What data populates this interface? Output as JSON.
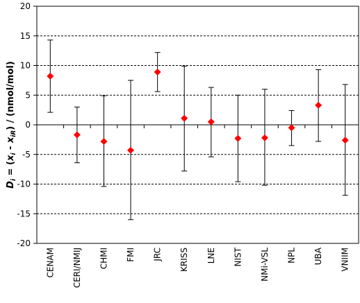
{
  "chart_data": {
    "type": "scatter",
    "ylabel": "Di = (xi - xiR) / (nmol/mol)",
    "ylabel_parts": {
      "d": "D",
      "d_sub": "i",
      "eq": " = (",
      "x1": "x",
      "x1_sub": "i",
      "minus": " - ",
      "x2": "x",
      "x2_sub": "iR",
      "tail": ") / (nmol/mol)"
    },
    "ylim": [
      -20,
      20
    ],
    "yticks": [
      -20,
      -15,
      -10,
      -5,
      0,
      5,
      10,
      15,
      20
    ],
    "grid": true,
    "legend": "none",
    "marker_color": "#ff0000",
    "categories": [
      "CENAM",
      "CERI/NMIJ",
      "CHMI",
      "FMI",
      "JRC",
      "KRISS",
      "LNE",
      "NIST",
      "NMi-VSL",
      "NPL",
      "UBA",
      "VNIIM"
    ],
    "values": [
      8.2,
      -1.7,
      -2.8,
      -4.3,
      8.9,
      1.1,
      0.5,
      -2.3,
      -2.2,
      -0.5,
      3.3,
      -2.6
    ],
    "lower": [
      2.1,
      -6.4,
      -10.4,
      -16.0,
      5.6,
      -7.8,
      -5.4,
      -9.6,
      -10.2,
      -3.5,
      -2.8,
      -11.9
    ],
    "upper": [
      14.3,
      3.0,
      4.9,
      7.5,
      12.2,
      9.9,
      6.3,
      5.0,
      6.0,
      2.4,
      9.3,
      6.8
    ]
  }
}
